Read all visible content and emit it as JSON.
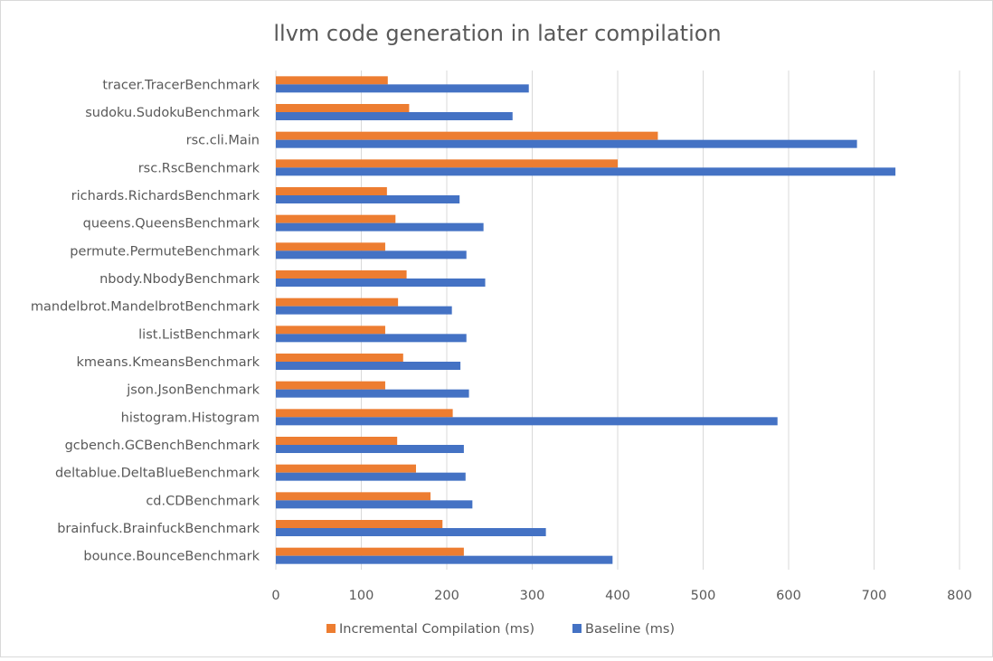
{
  "chart_data": {
    "type": "bar",
    "orientation": "horizontal",
    "title": "llvm code generation in later compilation",
    "xlabel": "",
    "ylabel": "",
    "xlim": [
      0,
      800
    ],
    "xticks": [
      "0",
      "100",
      "200",
      "300",
      "400",
      "500",
      "600",
      "700",
      "800"
    ],
    "grid": true,
    "legend_position": "bottom",
    "categories": [
      "tracer.TracerBenchmark",
      "sudoku.SudokuBenchmark",
      "rsc.cli.Main",
      "rsc.RscBenchmark",
      "richards.RichardsBenchmark",
      "queens.QueensBenchmark",
      "permute.PermuteBenchmark",
      "nbody.NbodyBenchmark",
      "mandelbrot.MandelbrotBenchmark",
      "list.ListBenchmark",
      "kmeans.KmeansBenchmark",
      "json.JsonBenchmark",
      "histogram.Histogram",
      "gcbench.GCBenchBenchmark",
      "deltablue.DeltaBlueBenchmark",
      "cd.CDBenchmark",
      "brainfuck.BrainfuckBenchmark",
      "bounce.BounceBenchmark"
    ],
    "series": [
      {
        "name": "Incremental Compilation (ms)",
        "color": "#ed7d31",
        "values": [
          131,
          156,
          447,
          400,
          130,
          140,
          128,
          153,
          143,
          128,
          149,
          128,
          207,
          142,
          164,
          181,
          195,
          220
        ]
      },
      {
        "name": "Baseline (ms)",
        "color": "#4472c4",
        "values": [
          296,
          277,
          680,
          725,
          215,
          243,
          223,
          245,
          206,
          223,
          216,
          226,
          587,
          220,
          222,
          230,
          316,
          394
        ]
      }
    ]
  }
}
